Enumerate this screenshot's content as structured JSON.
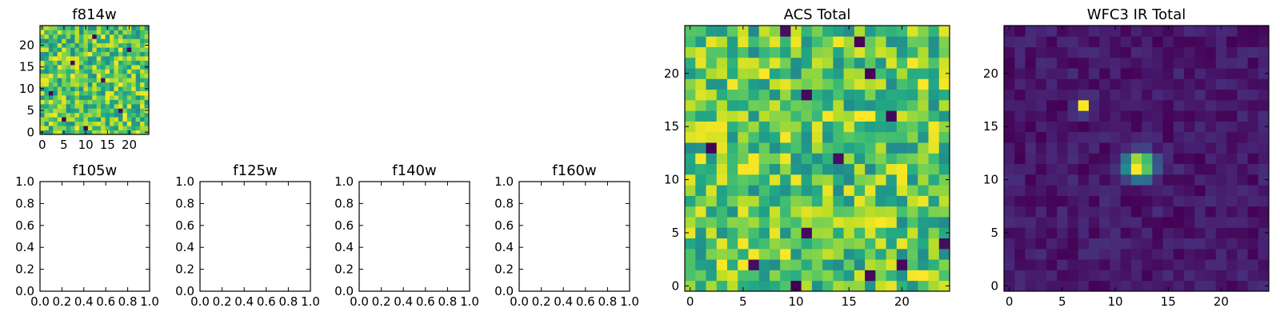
{
  "chart_data": [
    {
      "id": "f814w",
      "type": "heatmap",
      "title": "f814w",
      "colormap": "viridis",
      "grid": false,
      "xlim": [
        -0.5,
        24.5
      ],
      "ylim": [
        -0.5,
        24.5
      ],
      "xticks": [
        0,
        5,
        10,
        15,
        20
      ],
      "yticks": [
        0,
        5,
        10,
        15,
        20
      ],
      "xticklabels": [
        "0",
        "5",
        "10",
        "15",
        "20"
      ],
      "yticklabels": [
        "0",
        "5",
        "10",
        "15",
        "20"
      ],
      "image": {
        "rows": 25,
        "cols": 25,
        "background_range": [
          0.45,
          0.95
        ],
        "noise_seed": 814,
        "low_outliers": [
          [
            1,
            10
          ],
          [
            3,
            5
          ],
          [
            5,
            18
          ],
          [
            9,
            2
          ],
          [
            12,
            14
          ],
          [
            16,
            7
          ],
          [
            19,
            20
          ],
          [
            22,
            12
          ]
        ],
        "sources": []
      }
    },
    {
      "id": "f105w",
      "type": "empty",
      "title": "f105w",
      "xlim": [
        0,
        1
      ],
      "ylim": [
        0,
        1
      ],
      "xticklabels": [
        "0.0",
        "0.2",
        "0.4",
        "0.6",
        "0.8",
        "1.0"
      ],
      "yticklabels": [
        "0.0",
        "0.2",
        "0.4",
        "0.6",
        "0.8",
        "1.0"
      ]
    },
    {
      "id": "f125w",
      "type": "empty",
      "title": "f125w",
      "xlim": [
        0,
        1
      ],
      "ylim": [
        0,
        1
      ],
      "xticklabels": [
        "0.0",
        "0.2",
        "0.4",
        "0.6",
        "0.8",
        "1.0"
      ],
      "yticklabels": [
        "0.0",
        "0.2",
        "0.4",
        "0.6",
        "0.8",
        "1.0"
      ]
    },
    {
      "id": "f140w",
      "type": "empty",
      "title": "f140w",
      "xlim": [
        0,
        1
      ],
      "ylim": [
        0,
        1
      ],
      "xticklabels": [
        "0.0",
        "0.2",
        "0.4",
        "0.6",
        "0.8",
        "1.0"
      ],
      "yticklabels": [
        "0.0",
        "0.2",
        "0.4",
        "0.6",
        "0.8",
        "1.0"
      ]
    },
    {
      "id": "f160w",
      "type": "empty",
      "title": "f160w",
      "xlim": [
        0,
        1
      ],
      "ylim": [
        0,
        1
      ],
      "xticklabels": [
        "0.0",
        "0.2",
        "0.4",
        "0.6",
        "0.8",
        "1.0"
      ],
      "yticklabels": [
        "0.0",
        "0.2",
        "0.4",
        "0.6",
        "0.8",
        "1.0"
      ]
    },
    {
      "id": "acs_total",
      "type": "heatmap",
      "title": "ACS Total",
      "colormap": "viridis",
      "grid": false,
      "xlim": [
        -0.5,
        24.5
      ],
      "ylim": [
        -0.5,
        24.5
      ],
      "xticks": [
        0,
        5,
        10,
        15,
        20
      ],
      "yticks": [
        0,
        5,
        10,
        15,
        20
      ],
      "xticklabels": [
        "0",
        "5",
        "10",
        "15",
        "20"
      ],
      "yticklabels": [
        "0",
        "5",
        "10",
        "15",
        "20"
      ],
      "image": {
        "rows": 25,
        "cols": 25,
        "background_range": [
          0.45,
          0.95
        ],
        "noise_seed": 1234,
        "low_outliers": [
          [
            0,
            10
          ],
          [
            1,
            17
          ],
          [
            2,
            6
          ],
          [
            2,
            20
          ],
          [
            4,
            24
          ],
          [
            5,
            11
          ],
          [
            12,
            14
          ],
          [
            13,
            2
          ],
          [
            16,
            19
          ],
          [
            18,
            11
          ],
          [
            20,
            17
          ],
          [
            23,
            16
          ],
          [
            24,
            9
          ]
        ],
        "sources": []
      }
    },
    {
      "id": "wfc3_ir_total",
      "type": "heatmap",
      "title": "WFC3 IR Total",
      "colormap": "viridis",
      "grid": false,
      "xlim": [
        -0.5,
        24.5
      ],
      "ylim": [
        -0.5,
        24.5
      ],
      "xticks": [
        0,
        5,
        10,
        15,
        20
      ],
      "yticks": [
        0,
        5,
        10,
        15,
        20
      ],
      "xticklabels": [
        "0",
        "5",
        "10",
        "15",
        "20"
      ],
      "yticklabels": [
        "0",
        "5",
        "10",
        "15",
        "20"
      ],
      "image": {
        "rows": 25,
        "cols": 25,
        "background_range": [
          0.05,
          0.18
        ],
        "noise_seed": 3160,
        "low_outliers": [],
        "sources": [
          {
            "x": 12.3,
            "y": 11.3,
            "peak": 1.0,
            "sigma": 0.9
          },
          {
            "x": 7.0,
            "y": 17.0,
            "peak": 0.95,
            "sigma": 0.45
          }
        ]
      }
    }
  ]
}
